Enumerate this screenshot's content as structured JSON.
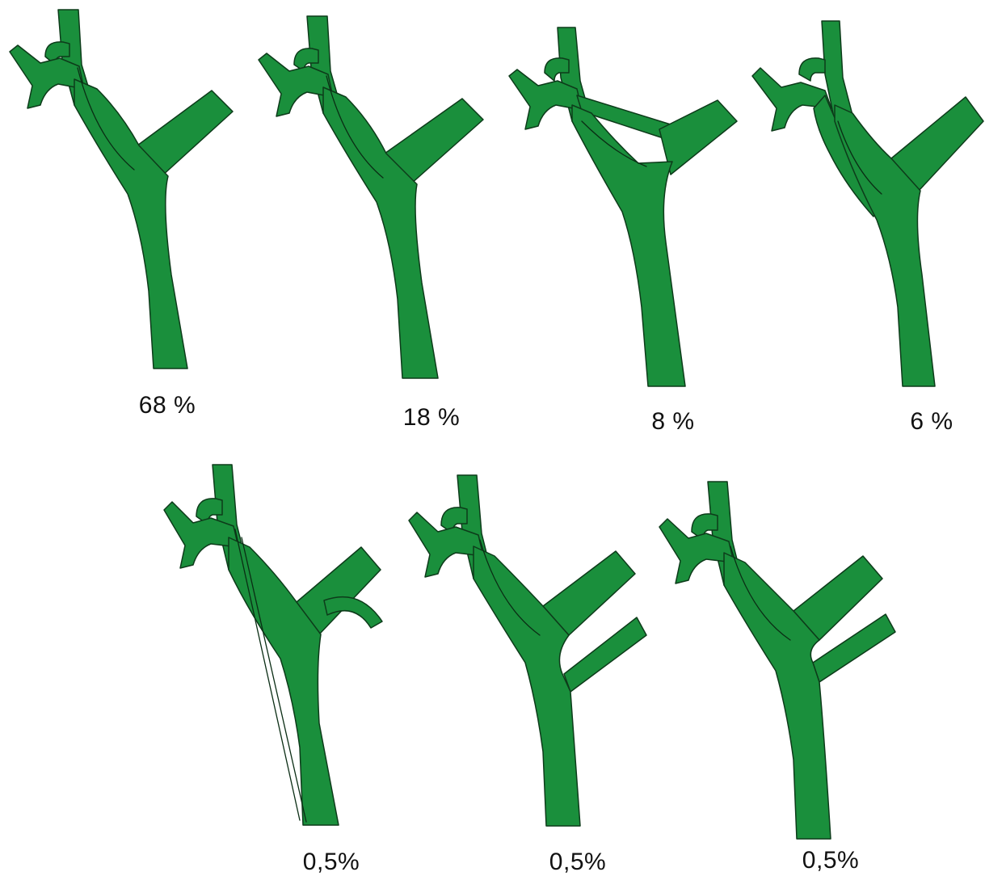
{
  "title": "",
  "colors": {
    "vessel": "#1a8f3c",
    "outline": "#0d3b1a",
    "text": "#111111",
    "background": "#ffffff"
  },
  "variants": [
    {
      "label": "68 %",
      "shape": "standard"
    },
    {
      "label": "18 %",
      "shape": "standard"
    },
    {
      "label": "8 %",
      "shape": "bridge"
    },
    {
      "label": "6 %",
      "shape": "crossing"
    },
    {
      "label": "0,5%",
      "shape": "accessory-short"
    },
    {
      "label": "0,5%",
      "shape": "accessory-low"
    },
    {
      "label": "0,5%",
      "shape": "accessory-mid"
    }
  ]
}
